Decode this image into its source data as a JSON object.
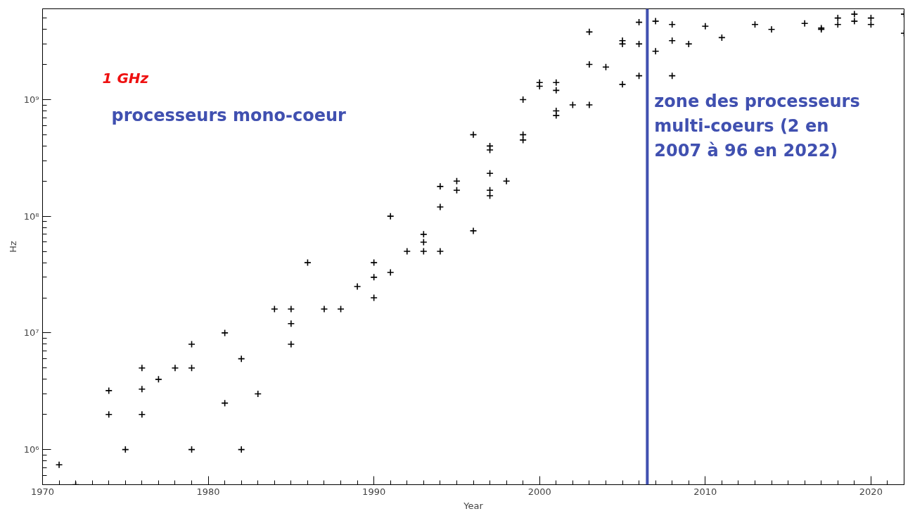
{
  "chart_data": {
    "type": "scatter",
    "xlabel": "Year",
    "ylabel": "Hz",
    "log": "y",
    "grid": false,
    "marker": "cross",
    "xlim": [
      1970,
      2022
    ],
    "xticks": [
      1970,
      1980,
      1990,
      2000,
      2010,
      2020
    ],
    "ylim": [
      500000,
      6000000000
    ],
    "yticks": [
      {
        "value": 1000000,
        "label": "10⁶"
      },
      {
        "value": 10000000,
        "label": "10⁷"
      },
      {
        "value": 100000000,
        "label": "10⁸"
      },
      {
        "value": 1000000000,
        "label": "10⁹"
      }
    ],
    "series": [
      {
        "color": "#000000",
        "x": [
          1971,
          1972,
          1974,
          1974,
          1975,
          1976,
          1976,
          1976,
          1977,
          1978,
          1979,
          1979,
          1979,
          1981,
          1981,
          1982,
          1982,
          1983,
          1984,
          1985,
          1985,
          1985,
          1986,
          1987,
          1988,
          1989,
          1990,
          1990,
          1990,
          1991,
          1991,
          1992,
          1993,
          1993,
          1993,
          1994,
          1994,
          1994,
          1995,
          1995,
          1996,
          1996,
          1997,
          1997,
          1997,
          1997,
          1997,
          1998,
          1999,
          1999,
          1999,
          2000,
          2000,
          2001,
          2001,
          2001,
          2001,
          2002,
          2003,
          2003,
          2003,
          2004,
          2005,
          2005,
          2005,
          2006,
          2006,
          2006,
          2007,
          2007,
          2008,
          2008,
          2008,
          2009,
          2010,
          2011,
          2013,
          2014,
          2016,
          2017,
          2017,
          2018,
          2018,
          2019,
          2019,
          2020,
          2020,
          2022,
          2022
        ],
        "values": [
          740000,
          500000,
          3200000,
          2000000,
          1000000,
          5000000,
          3300000,
          2000000,
          4000000,
          5000000,
          8000000,
          5000000,
          1000000,
          10000000,
          2500000,
          6000000,
          1000000,
          3000000,
          16000000,
          16000000,
          12000000,
          8000000,
          40000000,
          16000000,
          16000000,
          25000000,
          40000000,
          30000000,
          20000000,
          100000000,
          33000000,
          50000000,
          70000000,
          60000000,
          50000000,
          180000000,
          120000000,
          50000000,
          200000000,
          167000000,
          500000000,
          75000000,
          400000000,
          370000000,
          233000000,
          167000000,
          150000000,
          200000000,
          1000000000,
          500000000,
          450000000,
          1400000000,
          1300000000,
          1400000000,
          1200000000,
          800000000,
          730000000,
          900000000,
          3800000000,
          2000000000,
          900000000,
          1900000000,
          3200000000,
          3000000000,
          1350000000,
          4600000000,
          3000000000,
          1600000000,
          4700000000,
          2600000000,
          4400000000,
          3200000000,
          1600000000,
          3000000000,
          4250000000,
          3400000000,
          4400000000,
          4000000000,
          4500000000,
          4100000000,
          4000000000,
          5000000000,
          4400000000,
          5400000000,
          4700000000,
          5000000000,
          4400000000,
          5400000000,
          3700000000
        ]
      }
    ],
    "ref_lines": [
      {
        "axis": "x",
        "value": 2006.5,
        "label": "zone des processeurs multi-coeurs (2 en 2007 à 96 en 2022)",
        "color": "#4050b0"
      }
    ],
    "annotations": [
      "1 GHz",
      "processeurs mono-coeur"
    ]
  }
}
